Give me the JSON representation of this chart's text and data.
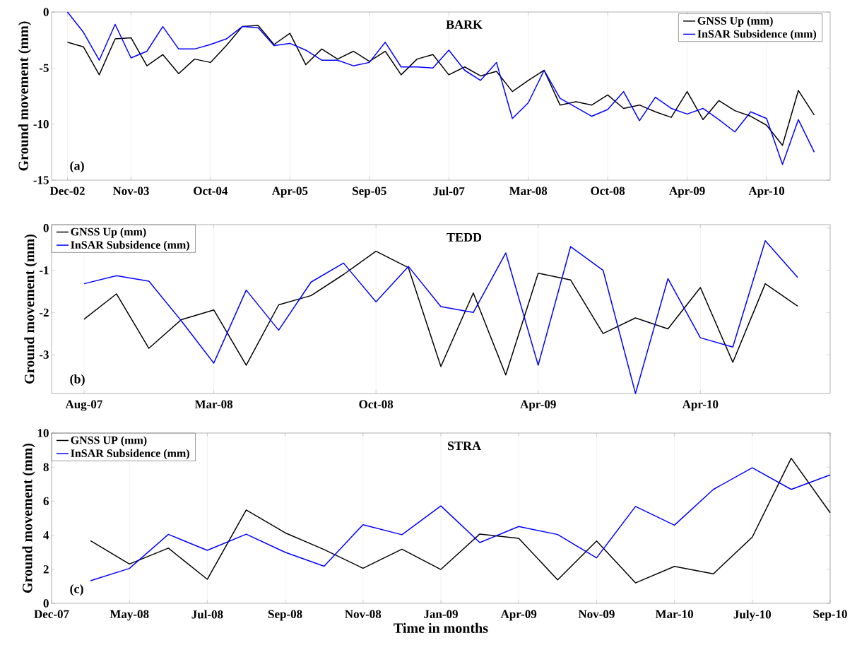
{
  "chart_data": [
    {
      "type": "line",
      "title": "BARK",
      "ylabel": "Ground movement (mm)",
      "annotations": [
        "(a)"
      ],
      "grid": "x",
      "legend": "top right",
      "categories": [
        "Dec-02",
        null,
        null,
        null,
        "Nov-03",
        null,
        null,
        null,
        null,
        "Oct-04",
        null,
        null,
        null,
        null,
        "Apr-05",
        null,
        null,
        null,
        null,
        "Sep-05",
        null,
        null,
        null,
        null,
        "Jul-07",
        null,
        null,
        null,
        null,
        "Mar-08",
        null,
        null,
        null,
        null,
        "Oct-08",
        null,
        null,
        null,
        null,
        "Apr-09",
        null,
        null,
        null,
        null,
        "Apr-10",
        null,
        null,
        null
      ],
      "ylim": [
        -15,
        0
      ],
      "yticks": [
        -15,
        -10,
        -5,
        0
      ],
      "series": [
        {
          "name": "GNSS Up (mm)",
          "color": "#000000",
          "values": [
            -2.7,
            -3.1,
            -5.6,
            -2.4,
            -2.3,
            -4.8,
            -3.8,
            -5.5,
            -4.2,
            -4.5,
            -3.0,
            -1.3,
            -1.2,
            -2.9,
            -1.9,
            -4.7,
            -3.3,
            -4.2,
            -3.5,
            -4.4,
            -3.5,
            -5.6,
            -4.2,
            -3.8,
            -5.6,
            -4.9,
            -5.7,
            -5.3,
            -7.1,
            -6.1,
            -5.2,
            -8.3,
            -8.0,
            -8.3,
            -7.4,
            -8.6,
            -8.3,
            -8.9,
            -9.4,
            -7.1,
            -9.6,
            -7.9,
            -8.8,
            -9.3,
            -10.1,
            -11.9,
            -7.0,
            -9.2
          ]
        },
        {
          "name": "InSAR Subsidence (mm)",
          "color": "#0000ff",
          "values": [
            0,
            -1.8,
            -4.3,
            -1.1,
            -4.1,
            -3.5,
            -1.3,
            -3.3,
            -3.3,
            -2.9,
            -2.4,
            -1.3,
            -1.4,
            -3.0,
            -2.8,
            -3.4,
            -4.3,
            -4.3,
            -4.8,
            -4.5,
            -2.7,
            -4.9,
            -4.9,
            -5.0,
            -3.4,
            -5.2,
            -6.1,
            -4.5,
            -9.5,
            -8.1,
            -5.2,
            -7.7,
            -8.5,
            -9.3,
            -8.7,
            -7.1,
            -9.7,
            -7.6,
            -8.6,
            -9.1,
            -8.6,
            -9.6,
            -10.7,
            -8.9,
            -9.5,
            -13.6,
            -9.6,
            -12.5
          ]
        }
      ]
    },
    {
      "type": "line",
      "title": "TEDD",
      "ylabel": "Ground movement (mm)",
      "annotations": [
        "(b)"
      ],
      "grid": "x",
      "legend": "top left",
      "categories": [
        "Aug-07",
        null,
        null,
        null,
        "Mar-08",
        null,
        null,
        null,
        null,
        "Oct-08",
        null,
        null,
        null,
        null,
        "Apr-09",
        null,
        null,
        null,
        null,
        "Apr-10",
        null,
        null,
        null
      ],
      "ylim": [
        -3.92,
        0.08
      ],
      "yticks": [
        -3,
        -2,
        -1,
        0
      ],
      "series": [
        {
          "name": "GNSS Up (mm)",
          "color": "#000000",
          "values": [
            -2.16,
            -1.56,
            -2.85,
            -2.17,
            -1.94,
            -3.25,
            -1.82,
            -1.6,
            -1.1,
            -0.55,
            -0.94,
            -3.28,
            -1.54,
            -3.48,
            -1.07,
            -1.23,
            -2.5,
            -2.13,
            -2.39,
            -1.41,
            -3.18,
            -1.32,
            -1.85
          ]
        },
        {
          "name": "InSAR Subsidence (mm)",
          "color": "#0000ff",
          "values": [
            -1.32,
            -1.13,
            -1.26,
            -2.2,
            -3.2,
            -1.47,
            -2.42,
            -1.28,
            -0.83,
            -1.75,
            -0.91,
            -1.86,
            -2.0,
            -0.59,
            -3.25,
            -0.44,
            -1.0,
            -3.92,
            -1.2,
            -2.6,
            -2.82,
            -0.3,
            -1.17
          ]
        }
      ]
    },
    {
      "type": "line",
      "title": "STRA",
      "ylabel": "Ground movement (mm)",
      "xlabel": "Time in months",
      "annotations": [
        "(c)"
      ],
      "grid": "x",
      "legend": "top left",
      "categories": [
        "Dec-07",
        null,
        "May-08",
        null,
        "Jul-08",
        null,
        "Sep-08",
        null,
        "Nov-08",
        null,
        "Jan-09",
        null,
        "Apr-09",
        null,
        "Nov-09",
        null,
        "Mar-10",
        null,
        "July-10",
        null,
        "Sep-10"
      ],
      "ylim": [
        0,
        10
      ],
      "yticks": [
        0,
        2,
        4,
        6,
        8,
        10
      ],
      "series": [
        {
          "name": "GNSS UP (mm)",
          "color": "#000000",
          "values": [
            null,
            3.68,
            2.31,
            3.24,
            1.41,
            5.48,
            4.14,
            3.16,
            2.06,
            3.18,
            1.99,
            4.07,
            3.82,
            1.38,
            3.66,
            1.2,
            2.17,
            1.73,
            3.89,
            8.52,
            5.32
          ]
        },
        {
          "name": "InSAR Subsidence (mm)",
          "color": "#0000ff",
          "values": [
            null,
            1.33,
            2.05,
            4.05,
            3.11,
            4.06,
            3.0,
            2.18,
            4.62,
            4.03,
            5.72,
            3.57,
            4.51,
            4.04,
            2.67,
            5.69,
            4.59,
            6.69,
            7.96,
            6.69,
            7.54
          ]
        }
      ]
    }
  ]
}
